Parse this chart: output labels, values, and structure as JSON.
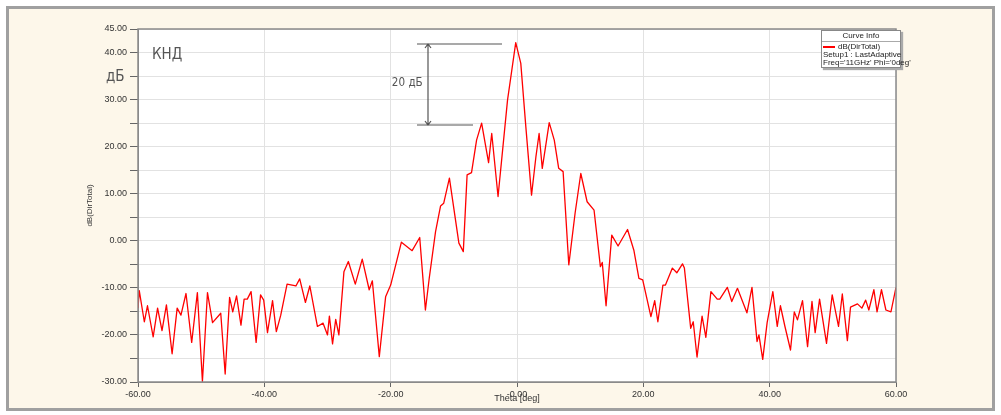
{
  "chart_data": {
    "type": "line",
    "xlabel": "Theta [deg]",
    "ylabel": "dB(DirTotal)",
    "legend_title": "Curve Info",
    "legend": "top right",
    "grid": true,
    "marker": "none",
    "line_style": "solid",
    "xlim": [
      -60,
      60
    ],
    "xticks": [
      {
        "value": -60,
        "label": "-60.00"
      },
      {
        "value": -40,
        "label": "-40.00"
      },
      {
        "value": -20,
        "label": "-20.00"
      },
      {
        "value": 0,
        "label": "-0.00"
      },
      {
        "value": 20,
        "label": "20.00"
      },
      {
        "value": 40,
        "label": "40.00"
      },
      {
        "value": 60,
        "label": "60.00"
      }
    ],
    "ylim": [
      -30,
      45
    ],
    "yticks": [
      {
        "value": -30,
        "label": "-30.00"
      },
      {
        "value": -25,
        "label": null
      },
      {
        "value": -20,
        "label": "-20.00"
      },
      {
        "value": -15,
        "label": null
      },
      {
        "value": -10,
        "label": "-10.00"
      },
      {
        "value": -5,
        "label": null
      },
      {
        "value": 0,
        "label": "0.00"
      },
      {
        "value": 5,
        "label": null
      },
      {
        "value": 10,
        "label": "10.00"
      },
      {
        "value": 15,
        "label": null
      },
      {
        "value": 20,
        "label": "20.00"
      },
      {
        "value": 25,
        "label": null
      },
      {
        "value": 30,
        "label": "30.00"
      },
      {
        "value": 35,
        "label": null
      },
      {
        "value": 40,
        "label": "40.00"
      },
      {
        "value": 45,
        "label": "45.00"
      }
    ],
    "annotations": [
      "КНД",
      "дБ",
      "20 дБ",
      "Setup1 : LastAdaptive",
      "Freq='11GHz' Phi='0deg'"
    ],
    "series": [
      {
        "name": "dB(DirTotal)",
        "color": "#ff0000",
        "x": [
          -60.0,
          -59.8,
          -59.0,
          -58.5,
          -57.6,
          -56.9,
          -56.2,
          -55.5,
          -54.6,
          -53.8,
          -53.2,
          -52.4,
          -51.5,
          -50.6,
          -49.8,
          -49.0,
          -48.2,
          -46.9,
          -46.2,
          -45.5,
          -45.0,
          -44.4,
          -43.7,
          -43.2,
          -42.7,
          -42.1,
          -41.3,
          -40.6,
          -40.1,
          -39.5,
          -38.7,
          -38.1,
          -37.4,
          -36.4,
          -35.0,
          -34.4,
          -33.5,
          -32.8,
          -31.6,
          -30.7,
          -30.0,
          -29.7,
          -29.2,
          -28.7,
          -28.2,
          -27.4,
          -26.7,
          -25.6,
          -24.5,
          -23.4,
          -22.9,
          -21.8,
          -20.8,
          -20.0,
          -18.3,
          -16.6,
          -15.4,
          -14.5,
          -13.9,
          -12.9,
          -12.1,
          -11.6,
          -10.7,
          -9.2,
          -8.5,
          -7.9,
          -7.2,
          -6.4,
          -5.6,
          -4.5,
          -4.0,
          -3.0,
          -1.5,
          -0.2,
          0.6,
          1.4,
          2.3,
          3.0,
          3.5,
          4.0,
          5.1,
          5.9,
          6.6,
          7.3,
          8.2,
          9.2,
          10.1,
          11.1,
          12.2,
          13.2,
          13.5,
          14.1,
          15.0,
          16.0,
          17.5,
          18.5,
          19.3,
          19.9,
          21.2,
          21.8,
          22.3,
          23.1,
          23.5,
          24.6,
          25.3,
          26.2,
          26.5,
          27.5,
          27.9,
          28.5,
          29.3,
          29.9,
          30.7,
          31.7,
          32.1,
          33.3,
          34.0,
          34.9,
          36.4,
          37.2,
          38.0,
          38.3,
          38.9,
          39.6,
          40.5,
          41.2,
          41.7,
          42.4,
          43.3,
          43.9,
          44.4,
          45.2,
          46.0,
          46.7,
          47.2,
          47.9,
          49.0,
          49.9,
          50.9,
          51.5,
          52.3,
          52.8,
          53.9,
          54.6,
          55.2,
          55.7,
          56.5,
          57.0,
          57.7,
          58.4,
          59.2,
          60.0
        ],
        "values": [
          -14.3,
          -10.6,
          -17.2,
          -13.8,
          -20.4,
          -14.3,
          -19.1,
          -13.6,
          -24.0,
          -14.3,
          -15.8,
          -11.2,
          -21.6,
          -11.0,
          -29.9,
          -11.0,
          -17.4,
          -15.4,
          -28.3,
          -12.0,
          -15.1,
          -11.7,
          -17.9,
          -12.4,
          -12.4,
          -10.8,
          -21.6,
          -11.5,
          -12.6,
          -19.5,
          -12.7,
          -19.3,
          -15.8,
          -9.2,
          -9.6,
          -8.1,
          -13.1,
          -9.6,
          -18.2,
          -17.5,
          -20.0,
          -16.0,
          -21.9,
          -16.7,
          -20.0,
          -6.6,
          -4.4,
          -9.2,
          -3.9,
          -10.4,
          -8.5,
          -24.6,
          -11.9,
          -9.4,
          -0.3,
          -2.1,
          0.7,
          -14.7,
          -8.0,
          1.9,
          7.4,
          8.0,
          13.3,
          -0.5,
          -2.3,
          14.0,
          14.5,
          21.4,
          25.0,
          16.6,
          22.8,
          9.4,
          29.9,
          42.1,
          37.7,
          24.2,
          9.7,
          17.9,
          22.8,
          15.4,
          25.1,
          21.4,
          15.4,
          14.7,
          -5.1,
          5.9,
          14.3,
          8.3,
          6.5,
          -5.5,
          -4.6,
          -13.8,
          1.2,
          -1.1,
          2.4,
          -2.0,
          -8.0,
          -8.3,
          -16.1,
          -12.7,
          -17.2,
          -9.4,
          -9.4,
          -5.8,
          -6.8,
          -4.9,
          -5.8,
          -18.6,
          -17.2,
          -24.7,
          -16.0,
          -20.5,
          -10.8,
          -12.4,
          -12.4,
          -9.9,
          -12.9,
          -10.1,
          -15.3,
          -9.9,
          -21.4,
          -20.0,
          -25.2,
          -17.4,
          -10.8,
          -18.2,
          -13.8,
          -18.1,
          -23.2,
          -15.1,
          -16.8,
          -12.7,
          -22.5,
          -12.9,
          -19.5,
          -12.4,
          -21.8,
          -11.5,
          -18.2,
          -11.3,
          -21.2,
          -14.1,
          -13.4,
          -14.3,
          -12.6,
          -14.7,
          -10.4,
          -15.1,
          -10.4,
          -14.7,
          -15.1,
          -9.9
        ]
      }
    ]
  }
}
